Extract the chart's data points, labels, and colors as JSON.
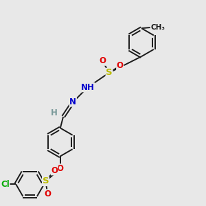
{
  "bg_color": "#e8e8e8",
  "bond_color": "#1a1a1a",
  "atom_colors": {
    "O": "#e00000",
    "N": "#0000cc",
    "S": "#bbbb00",
    "Cl": "#00aa00",
    "H": "#7a9a9a",
    "C": "#1a1a1a",
    "CH3": "#1a1a1a"
  },
  "lw": 1.4,
  "ring_r": 0.72
}
